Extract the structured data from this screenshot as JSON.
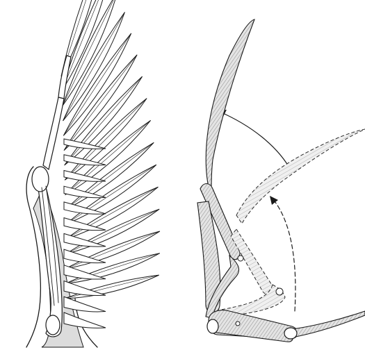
{
  "figure": {
    "left_panel": {
      "subject": "bird-wing-feathers-over-skeleton"
    },
    "right_panel": {
      "subject": "wing-fold-extension-sequence"
    },
    "colors": {
      "ink": "#1a1a1a",
      "paper": "#ffffff",
      "shade": "#d8d8d8"
    }
  }
}
